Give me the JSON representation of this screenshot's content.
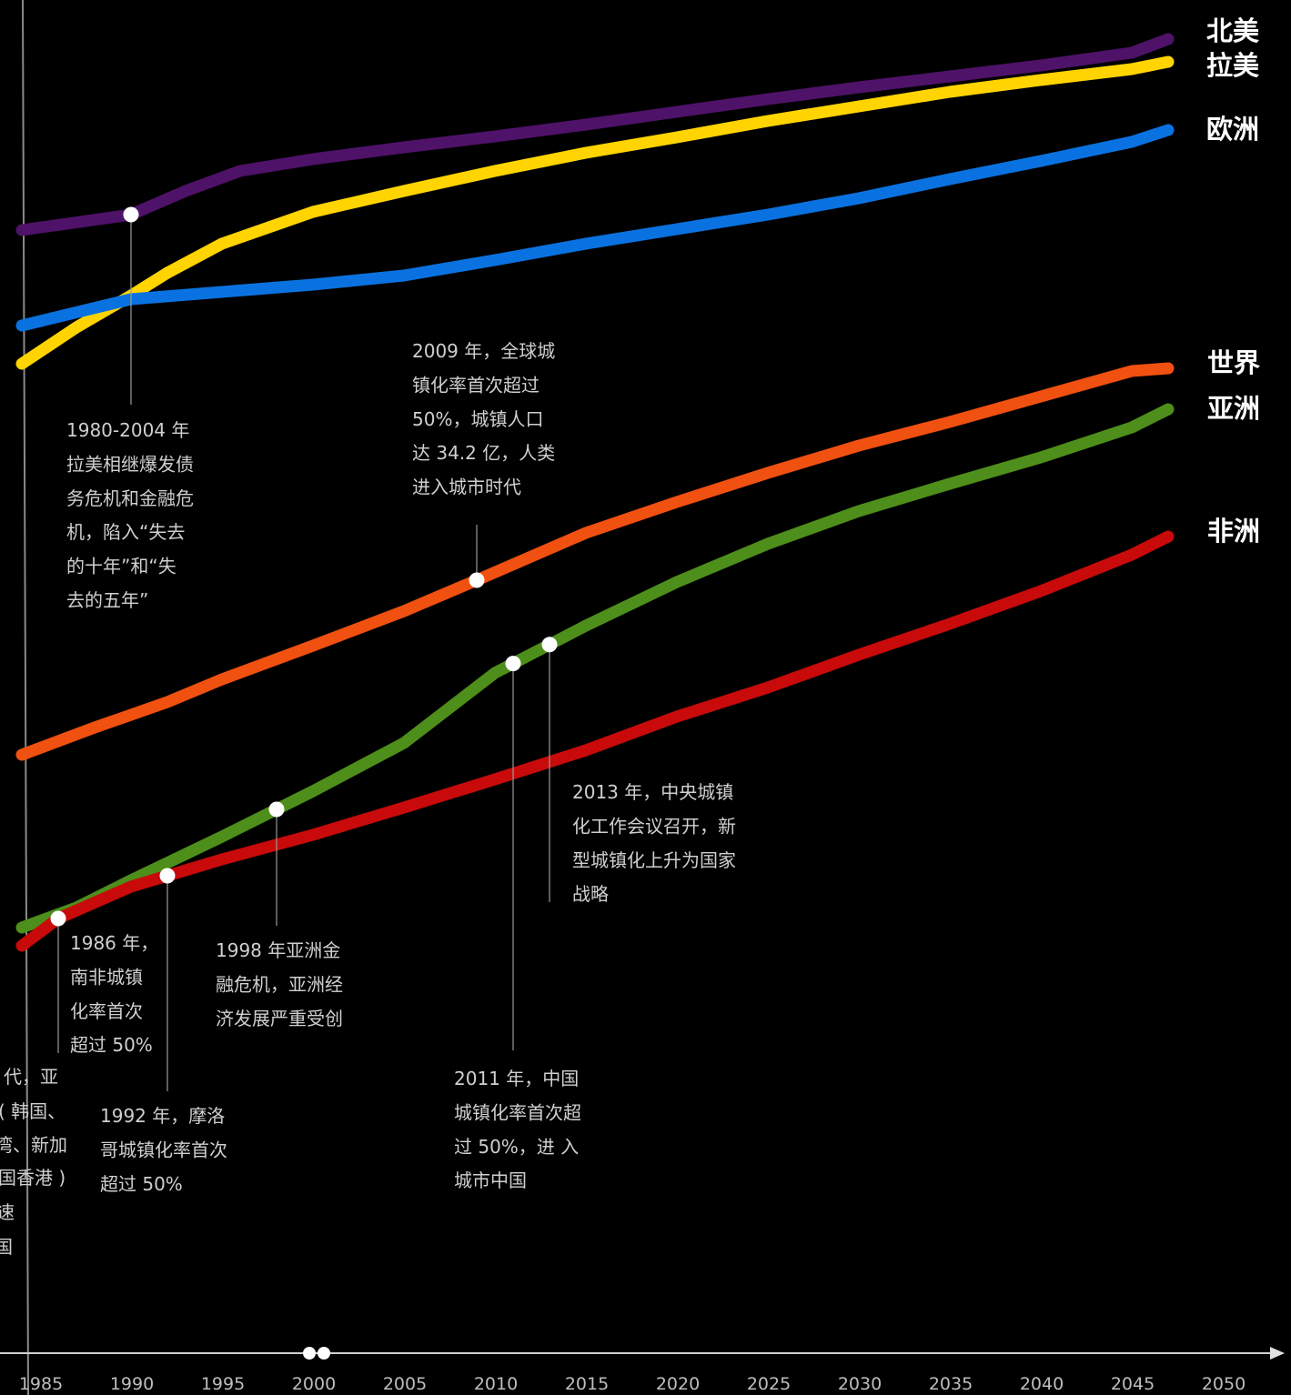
{
  "chart_data": {
    "type": "line",
    "x_start": 1985,
    "x_end": 2050,
    "x_ticks": [
      1985,
      1990,
      1995,
      2000,
      2005,
      2010,
      2015,
      2020,
      2025,
      2030,
      2035,
      2040,
      2045,
      2050
    ],
    "grid": false,
    "legend": "right, labels at line ends",
    "series": [
      {
        "name": "北美",
        "color": "#4e1268",
        "points": [
          [
            1984,
            253
          ],
          [
            1990,
            236
          ],
          [
            1993,
            210
          ],
          [
            1996,
            188
          ],
          [
            2000,
            175
          ],
          [
            2005,
            162
          ],
          [
            2010,
            150
          ],
          [
            2015,
            137
          ],
          [
            2020,
            123
          ],
          [
            2025,
            109
          ],
          [
            2030,
            96
          ],
          [
            2035,
            84
          ],
          [
            2040,
            72
          ],
          [
            2045,
            58
          ],
          [
            2047,
            43
          ]
        ]
      },
      {
        "name": "拉美",
        "color": "#ffd400",
        "points": [
          [
            1984,
            400
          ],
          [
            1987,
            360
          ],
          [
            1990,
            325
          ],
          [
            1992,
            300
          ],
          [
            1995,
            268
          ],
          [
            2000,
            233
          ],
          [
            2005,
            210
          ],
          [
            2010,
            188
          ],
          [
            2015,
            168
          ],
          [
            2020,
            151
          ],
          [
            2025,
            133
          ],
          [
            2030,
            117
          ],
          [
            2035,
            101
          ],
          [
            2040,
            88
          ],
          [
            2045,
            76
          ],
          [
            2047,
            68
          ]
        ]
      },
      {
        "name": "欧洲",
        "color": "#0a72e0",
        "points": [
          [
            1984,
            358
          ],
          [
            1990,
            329
          ],
          [
            1995,
            321
          ],
          [
            2000,
            313
          ],
          [
            2005,
            303
          ],
          [
            2010,
            286
          ],
          [
            2015,
            268
          ],
          [
            2020,
            252
          ],
          [
            2025,
            236
          ],
          [
            2030,
            218
          ],
          [
            2035,
            197
          ],
          [
            2040,
            177
          ],
          [
            2045,
            156
          ],
          [
            2047,
            143
          ]
        ]
      },
      {
        "name": "世界",
        "color": "#f05010",
        "points": [
          [
            1984,
            830
          ],
          [
            1988,
            800
          ],
          [
            1992,
            772
          ],
          [
            1995,
            747
          ],
          [
            2000,
            710
          ],
          [
            2005,
            672
          ],
          [
            2009,
            638
          ],
          [
            2015,
            586
          ],
          [
            2020,
            552
          ],
          [
            2025,
            520
          ],
          [
            2030,
            490
          ],
          [
            2035,
            464
          ],
          [
            2040,
            436
          ],
          [
            2045,
            408
          ],
          [
            2047,
            405
          ]
        ]
      },
      {
        "name": "亚洲",
        "color": "#4e8e1a",
        "points": [
          [
            1984,
            1020
          ],
          [
            1987,
            998
          ],
          [
            1990,
            968
          ],
          [
            1995,
            920
          ],
          [
            2000,
            870
          ],
          [
            2005,
            817
          ],
          [
            2010,
            740
          ],
          [
            2015,
            688
          ],
          [
            2020,
            640
          ],
          [
            2025,
            598
          ],
          [
            2030,
            562
          ],
          [
            2035,
            532
          ],
          [
            2040,
            503
          ],
          [
            2045,
            470
          ],
          [
            2047,
            450
          ]
        ]
      },
      {
        "name": "非洲",
        "color": "#c80a0a",
        "points": [
          [
            1984,
            1040
          ],
          [
            1986,
            1010
          ],
          [
            1990,
            975
          ],
          [
            1995,
            945
          ],
          [
            2000,
            918
          ],
          [
            2005,
            888
          ],
          [
            2010,
            857
          ],
          [
            2015,
            825
          ],
          [
            2020,
            788
          ],
          [
            2025,
            756
          ],
          [
            2030,
            720
          ],
          [
            2035,
            686
          ],
          [
            2040,
            650
          ],
          [
            2045,
            610
          ],
          [
            2047,
            590
          ]
        ]
      }
    ],
    "annotations": [
      {
        "series": "北美",
        "year": 1990,
        "text": [
          "1980-2004 年",
          "拉美相继爆发债",
          "务危机和金融危",
          "机，陷入“失去",
          "的十年”和“失",
          "去的五年”"
        ]
      },
      {
        "series": "世界",
        "year": 2009,
        "text": [
          "2009 年，全球城",
          "镇化率首次超过",
          "50%，城镇人口",
          "达 34.2 亿，人类",
          "进入城市时代"
        ]
      },
      {
        "series": "亚洲",
        "year": 2011,
        "text": [
          "2011 年，中国",
          "城镇化率首次超",
          "过 50%，进 入",
          "城市中国"
        ]
      },
      {
        "series": "亚洲",
        "year": 2013,
        "text": [
          "2013 年，中央城镇",
          "化工作会议召开，新",
          "型城镇化上升为国家",
          "战略"
        ]
      },
      {
        "series": "亚洲",
        "year": 1998,
        "text": [
          "1998 年亚洲金",
          "融危机，亚洲经",
          "济发展严重受创"
        ]
      },
      {
        "series": "非洲",
        "year": 1986,
        "text": [
          "1986 年，",
          "南非城镇",
          "化率首次",
          "超过 50%"
        ]
      },
      {
        "series": "非洲",
        "year": 1992,
        "text": [
          "1992 年，摩洛",
          "哥城镇化率首次",
          "超过 50%"
        ]
      }
    ],
    "cut_off_text": [
      "代，亚",
      "( 韩国、",
      "湾、新加",
      "国香港 )",
      "速",
      "国"
    ]
  }
}
